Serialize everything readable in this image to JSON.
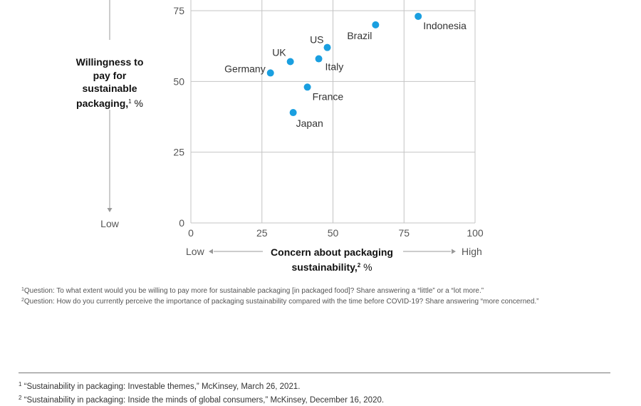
{
  "chart_data": {
    "type": "scatter",
    "xlabel": "Concern about packaging sustainability,",
    "xlabel_footnote": "2",
    "xlabel_unit": "%",
    "ylabel": "Willingness to pay for sustainable packaging,",
    "ylabel_footnote": "1",
    "ylabel_unit": "%",
    "xlim": [
      0,
      100
    ],
    "ylim": [
      0,
      75
    ],
    "x_ticks": [
      0,
      25,
      50,
      75,
      100
    ],
    "y_ticks": [
      0,
      25,
      50,
      75
    ],
    "grid": true,
    "x_low_label": "Low",
    "x_high_label": "High",
    "y_low_label": "Low",
    "point_color": "#1a9fe0",
    "points": [
      {
        "label": "Germany",
        "x": 28,
        "y": 53
      },
      {
        "label": "UK",
        "x": 35,
        "y": 57
      },
      {
        "label": "US",
        "x": 48,
        "y": 62
      },
      {
        "label": "Italy",
        "x": 45,
        "y": 58
      },
      {
        "label": "France",
        "x": 41,
        "y": 48
      },
      {
        "label": "Japan",
        "x": 36,
        "y": 39
      },
      {
        "label": "Brazil",
        "x": 65,
        "y": 70
      },
      {
        "label": "Indonesia",
        "x": 80,
        "y": 73
      }
    ]
  },
  "notes": [
    {
      "mark": "1",
      "text": "Question: To what extent would you be willing to pay more for sustainable packaging [in packaged food]? Share answering a “little” or a “lot more.”"
    },
    {
      "mark": "2",
      "text": "Question: How do you currently perceive the importance of packaging sustainability compared with the time before COVID-19? Share answering “more concerned.”"
    }
  ],
  "references": [
    {
      "mark": "1",
      "text": "“Sustainability in packaging: Investable themes,” McKinsey, March 26, 2021."
    },
    {
      "mark": "2",
      "text": "“Sustainability in packaging: Inside the minds of global consumers,” McKinsey, December 16, 2020."
    }
  ]
}
